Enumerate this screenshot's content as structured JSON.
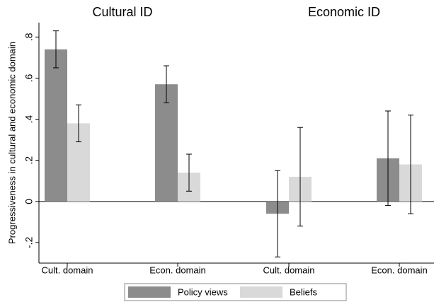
{
  "chart_data": [
    {
      "type": "bar",
      "title": "Cultural ID",
      "y_label": "Progressiveness in cultural and economic domain",
      "categories": [
        "Cult. domain",
        "Econ. domain"
      ],
      "series": [
        {
          "name": "Policy views",
          "color": "#8c8c8c",
          "values": [
            0.74,
            0.57
          ],
          "errors": [
            0.09,
            0.09
          ]
        },
        {
          "name": "Beliefs",
          "color": "#d9d9d9",
          "values": [
            0.38,
            0.14
          ],
          "errors": [
            0.09,
            0.09
          ]
        }
      ],
      "ylim": [
        -0.3,
        0.87
      ],
      "yticks": [
        {
          "value": -0.2,
          "label": "-.2"
        },
        0,
        {
          "value": 0.2,
          "label": ".2"
        },
        {
          "value": 0.4,
          "label": ".4"
        },
        {
          "value": 0.6,
          "label": ".6"
        },
        {
          "value": 0.8,
          "label": ".8"
        }
      ]
    },
    {
      "type": "bar",
      "title": "Economic ID",
      "categories": [
        "Cult. domain",
        "Econ. domain"
      ],
      "series": [
        {
          "name": "Policy views",
          "color": "#8c8c8c",
          "values": [
            -0.06,
            0.21
          ],
          "errors": [
            0.21,
            0.23
          ]
        },
        {
          "name": "Beliefs",
          "color": "#d9d9d9",
          "values": [
            0.12,
            0.18
          ],
          "errors": [
            0.24,
            0.24
          ]
        }
      ],
      "ylim": [
        -0.3,
        0.87
      ]
    }
  ]
}
